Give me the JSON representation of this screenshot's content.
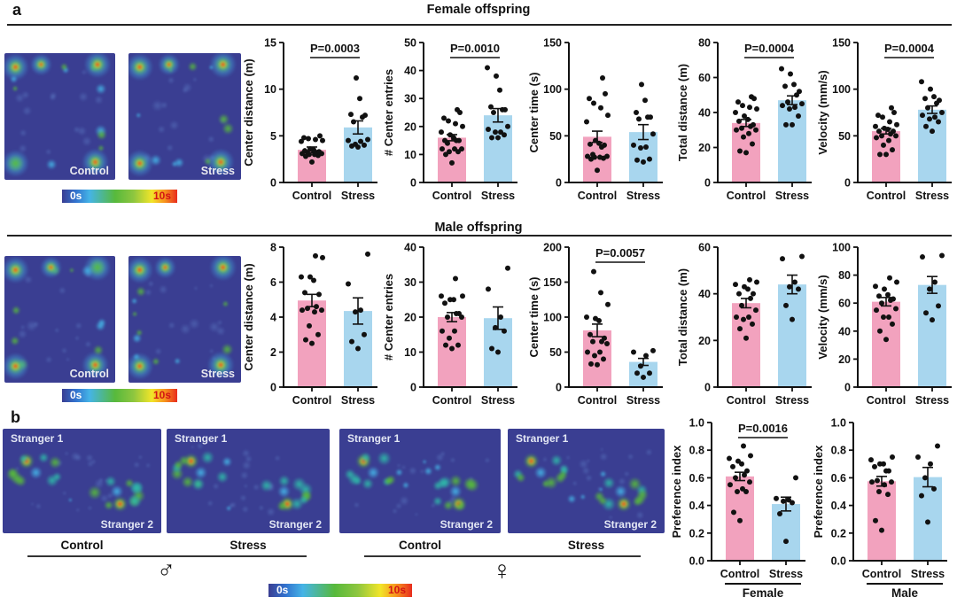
{
  "colors": {
    "control_bar": "#F2A2BE",
    "stress_bar": "#A8D6EE",
    "heatmap_bg": "#3A3E92",
    "hotspot_red": "#E82C1E",
    "scale_max_text": "#D31414",
    "axis": "#111111"
  },
  "panel_a": {
    "label": "a",
    "rows": [
      {
        "id": "female",
        "title": "Female offspring",
        "heatmaps": [
          {
            "label": "Control"
          },
          {
            "label": "Stress"
          }
        ],
        "colorbar": {
          "min": "0s",
          "max": "10s"
        }
      },
      {
        "id": "male",
        "title": "Male offspring",
        "heatmaps": [
          {
            "label": "Control"
          },
          {
            "label": "Stress"
          }
        ],
        "colorbar": {
          "min": "0s",
          "max": "10s"
        }
      }
    ]
  },
  "panel_b": {
    "label": "b",
    "groups": [
      {
        "sex": "male",
        "symbol": "♂",
        "maps": [
          {
            "top_label": "Stranger 1",
            "bottom_label": "Stranger 2",
            "condition": "Control"
          },
          {
            "top_label": "Stranger 1",
            "bottom_label": "Stranger 2",
            "condition": "Stress"
          }
        ]
      },
      {
        "sex": "female",
        "symbol": "♀",
        "maps": [
          {
            "top_label": "Stranger 1",
            "bottom_label": "Stranger 2",
            "condition": "Control"
          },
          {
            "top_label": "Stranger 1",
            "bottom_label": "Stranger 2",
            "condition": "Stress"
          }
        ]
      }
    ],
    "colorbar": {
      "min": "0s",
      "max": "10s"
    }
  },
  "chart_data": [
    {
      "id": "female-center-distance",
      "type": "bar",
      "row": "Female offspring",
      "ylabel": "Center distance (m)",
      "ylim": [
        0,
        15
      ],
      "yticks": [
        "0",
        "5",
        "10",
        "15"
      ],
      "categories": [
        "Control",
        "Stress"
      ],
      "p_value": "P=0.0003",
      "group_label": null,
      "series": [
        {
          "name": "Control",
          "mean": 3.5,
          "sem": 0.3,
          "points": [
            2.2,
            2.8,
            2.9,
            3.0,
            3.0,
            3.1,
            3.1,
            3.2,
            3.2,
            3.3,
            3.4,
            3.5,
            3.6,
            4.4,
            4.5,
            4.6,
            4.7,
            4.8,
            5.0
          ]
        },
        {
          "name": "Stress",
          "mean": 5.9,
          "sem": 0.7,
          "points": [
            3.8,
            3.9,
            4.0,
            4.1,
            4.4,
            4.5,
            4.6,
            6.5,
            7.0,
            7.2,
            7.3,
            9.0,
            11.2
          ]
        }
      ]
    },
    {
      "id": "female-center-entries",
      "type": "bar",
      "row": "Female offspring",
      "ylabel": "# Center entries",
      "ylim": [
        0,
        50
      ],
      "yticks": [
        "0",
        "10",
        "20",
        "30",
        "40",
        "50"
      ],
      "categories": [
        "Control",
        "Stress"
      ],
      "p_value": "P=0.0010",
      "group_label": null,
      "series": [
        {
          "name": "Control",
          "mean": 16,
          "sem": 1.1,
          "points": [
            7,
            10,
            11,
            11,
            12,
            12,
            12,
            14,
            15,
            15,
            15,
            16,
            17,
            18,
            20,
            21,
            22,
            23,
            25,
            26
          ]
        },
        {
          "name": "Stress",
          "mean": 24,
          "sem": 2.4,
          "points": [
            16,
            16,
            17,
            18,
            18,
            19,
            20,
            25,
            26,
            26,
            27,
            33,
            38,
            41
          ]
        }
      ]
    },
    {
      "id": "female-center-time",
      "type": "bar",
      "row": "Female offspring",
      "ylabel": "Center time (s)",
      "ylim": [
        0,
        150
      ],
      "yticks": [
        "0",
        "50",
        "100",
        "150"
      ],
      "categories": [
        "Control",
        "Stress"
      ],
      "p_value": null,
      "group_label": null,
      "series": [
        {
          "name": "Control",
          "mean": 49,
          "sem": 6,
          "points": [
            13,
            25,
            26,
            27,
            27,
            28,
            28,
            30,
            38,
            40,
            41,
            42,
            45,
            65,
            72,
            80,
            85,
            90,
            95,
            112
          ]
        },
        {
          "name": "Stress",
          "mean": 54,
          "sem": 8,
          "points": [
            22,
            24,
            25,
            37,
            38,
            40,
            52,
            68,
            70,
            70,
            75,
            88,
            105
          ]
        }
      ]
    },
    {
      "id": "female-total-distance",
      "type": "bar",
      "row": "Female offspring",
      "ylabel": "Total distance (m)",
      "ylim": [
        0,
        80
      ],
      "yticks": [
        "0",
        "20",
        "40",
        "60",
        "80"
      ],
      "categories": [
        "Control",
        "Stress"
      ],
      "p_value": "P=0.0004",
      "group_label": null,
      "series": [
        {
          "name": "Control",
          "mean": 34,
          "sem": 2,
          "points": [
            17,
            18,
            22,
            26,
            28,
            30,
            30,
            31,
            32,
            33,
            35,
            36,
            38,
            40,
            42,
            43,
            44,
            46,
            48,
            49
          ]
        },
        {
          "name": "Stress",
          "mean": 47,
          "sem": 2.5,
          "points": [
            33,
            33,
            38,
            42,
            43,
            44,
            45,
            46,
            50,
            52,
            55,
            56,
            62,
            65
          ]
        }
      ]
    },
    {
      "id": "female-velocity",
      "type": "bar",
      "row": "Female offspring",
      "ylabel": "Velocity (mm/s)",
      "ylim": [
        0,
        150
      ],
      "yticks": [
        "0",
        "50",
        "100",
        "150"
      ],
      "categories": [
        "Control",
        "Stress"
      ],
      "p_value": "P=0.0004",
      "group_label": null,
      "series": [
        {
          "name": "Control",
          "mean": 55,
          "sem": 3,
          "points": [
            30,
            30,
            35,
            40,
            45,
            48,
            50,
            50,
            52,
            55,
            55,
            57,
            58,
            60,
            62,
            65,
            70,
            72,
            75,
            80
          ]
        },
        {
          "name": "Stress",
          "mean": 78,
          "sem": 4,
          "points": [
            55,
            60,
            65,
            68,
            70,
            72,
            75,
            80,
            85,
            88,
            90,
            92,
            100,
            108
          ]
        }
      ]
    },
    {
      "id": "male-center-distance",
      "type": "bar",
      "row": "Male offspring",
      "ylabel": "Center distance (m)",
      "ylim": [
        0,
        8
      ],
      "yticks": [
        "0",
        "2",
        "4",
        "6",
        "8"
      ],
      "categories": [
        "Control",
        "Stress"
      ],
      "p_value": null,
      "group_label": null,
      "series": [
        {
          "name": "Control",
          "mean": 4.95,
          "sem": 0.35,
          "points": [
            2.5,
            2.7,
            3.0,
            3.5,
            4.3,
            4.4,
            4.4,
            4.5,
            4.6,
            5.3,
            5.4,
            6.1,
            6.3,
            6.3,
            7.4,
            7.5
          ]
        },
        {
          "name": "Stress",
          "mean": 4.35,
          "sem": 0.75,
          "points": [
            2.2,
            2.6,
            3.0,
            4.3,
            4.4,
            5.9,
            7.6
          ]
        }
      ]
    },
    {
      "id": "male-center-entries",
      "type": "bar",
      "row": "Male offspring",
      "ylabel": "# Center entries",
      "ylim": [
        0,
        40
      ],
      "yticks": [
        "0",
        "10",
        "20",
        "30",
        "40"
      ],
      "categories": [
        "Control",
        "Stress"
      ],
      "p_value": null,
      "group_label": null,
      "series": [
        {
          "name": "Control",
          "mean": 20,
          "sem": 1.3,
          "points": [
            11,
            12,
            12,
            14,
            16,
            16,
            20,
            20,
            21,
            21,
            24,
            25,
            25,
            26,
            26,
            31
          ]
        },
        {
          "name": "Stress",
          "mean": 19.7,
          "sem": 3.2,
          "points": [
            10,
            11,
            16,
            17,
            20,
            28,
            34
          ]
        }
      ]
    },
    {
      "id": "male-center-time",
      "type": "bar",
      "row": "Male offspring",
      "ylabel": "Center time (s)",
      "ylim": [
        0,
        200
      ],
      "yticks": [
        "0",
        "50",
        "100",
        "150",
        "200"
      ],
      "categories": [
        "Control",
        "Stress"
      ],
      "p_value": "P=0.0057",
      "group_label": null,
      "series": [
        {
          "name": "Control",
          "mean": 81,
          "sem": 9,
          "points": [
            32,
            33,
            40,
            45,
            50,
            50,
            62,
            65,
            65,
            70,
            75,
            95,
            98,
            100,
            118,
            135,
            165
          ]
        },
        {
          "name": "Stress",
          "mean": 36,
          "sem": 5,
          "points": [
            14,
            20,
            20,
            30,
            45,
            50,
            52
          ]
        }
      ]
    },
    {
      "id": "male-total-distance",
      "type": "bar",
      "row": "Male offspring",
      "ylabel": "Total distance (m)",
      "ylim": [
        0,
        60
      ],
      "yticks": [
        "0",
        "20",
        "40",
        "60"
      ],
      "categories": [
        "Control",
        "Stress"
      ],
      "p_value": null,
      "group_label": null,
      "series": [
        {
          "name": "Control",
          "mean": 36,
          "sem": 2,
          "points": [
            21,
            25,
            27,
            29,
            30,
            30,
            33,
            35,
            38,
            40,
            40,
            42,
            43,
            44,
            45,
            46
          ]
        },
        {
          "name": "Stress",
          "mean": 44,
          "sem": 4,
          "points": [
            29,
            35,
            42,
            43,
            45,
            55,
            56
          ]
        }
      ]
    },
    {
      "id": "male-velocity",
      "type": "bar",
      "row": "Male offspring",
      "ylabel": "Velocity (mm/s)",
      "ylim": [
        0,
        100
      ],
      "yticks": [
        "0",
        "20",
        "40",
        "60",
        "80",
        "100"
      ],
      "categories": [
        "Control",
        "Stress"
      ],
      "p_value": null,
      "group_label": null,
      "series": [
        {
          "name": "Control",
          "mean": 61,
          "sem": 3,
          "points": [
            34,
            40,
            45,
            50,
            50,
            55,
            56,
            60,
            62,
            63,
            65,
            66,
            70,
            72,
            75,
            78
          ]
        },
        {
          "name": "Stress",
          "mean": 73,
          "sem": 6,
          "points": [
            48,
            53,
            58,
            70,
            75,
            93,
            94
          ]
        }
      ]
    },
    {
      "id": "female-preference-index",
      "type": "bar",
      "row": "Sociability",
      "ylabel": "Preference index",
      "ylim": [
        0,
        1
      ],
      "yticks": [
        "0.0",
        "0.2",
        "0.4",
        "0.6",
        "0.8",
        "1.0"
      ],
      "categories": [
        "Control",
        "Stress"
      ],
      "p_value": "P=0.0016",
      "group_label": "Female",
      "series": [
        {
          "name": "Control",
          "mean": 0.61,
          "sem": 0.03,
          "points": [
            0.29,
            0.35,
            0.5,
            0.5,
            0.52,
            0.55,
            0.57,
            0.6,
            0.62,
            0.65,
            0.68,
            0.7,
            0.72,
            0.74,
            0.76,
            0.83
          ]
        },
        {
          "name": "Stress",
          "mean": 0.41,
          "sem": 0.05,
          "points": [
            0.14,
            0.34,
            0.42,
            0.43,
            0.44,
            0.45,
            0.6
          ]
        }
      ]
    },
    {
      "id": "male-preference-index",
      "type": "bar",
      "row": "Sociability",
      "ylabel": "Preference index",
      "ylim": [
        0,
        1
      ],
      "yticks": [
        "0.0",
        "0.2",
        "0.4",
        "0.6",
        "0.8",
        "1.0"
      ],
      "categories": [
        "Control",
        "Stress"
      ],
      "p_value": null,
      "group_label": "Male",
      "series": [
        {
          "name": "Control",
          "mean": 0.575,
          "sem": 0.035,
          "points": [
            0.22,
            0.29,
            0.48,
            0.5,
            0.55,
            0.57,
            0.57,
            0.58,
            0.65,
            0.65,
            0.68,
            0.7,
            0.7,
            0.73,
            0.75
          ]
        },
        {
          "name": "Stress",
          "mean": 0.605,
          "sem": 0.07,
          "points": [
            0.28,
            0.47,
            0.52,
            0.6,
            0.7,
            0.75,
            0.83
          ]
        }
      ]
    }
  ]
}
